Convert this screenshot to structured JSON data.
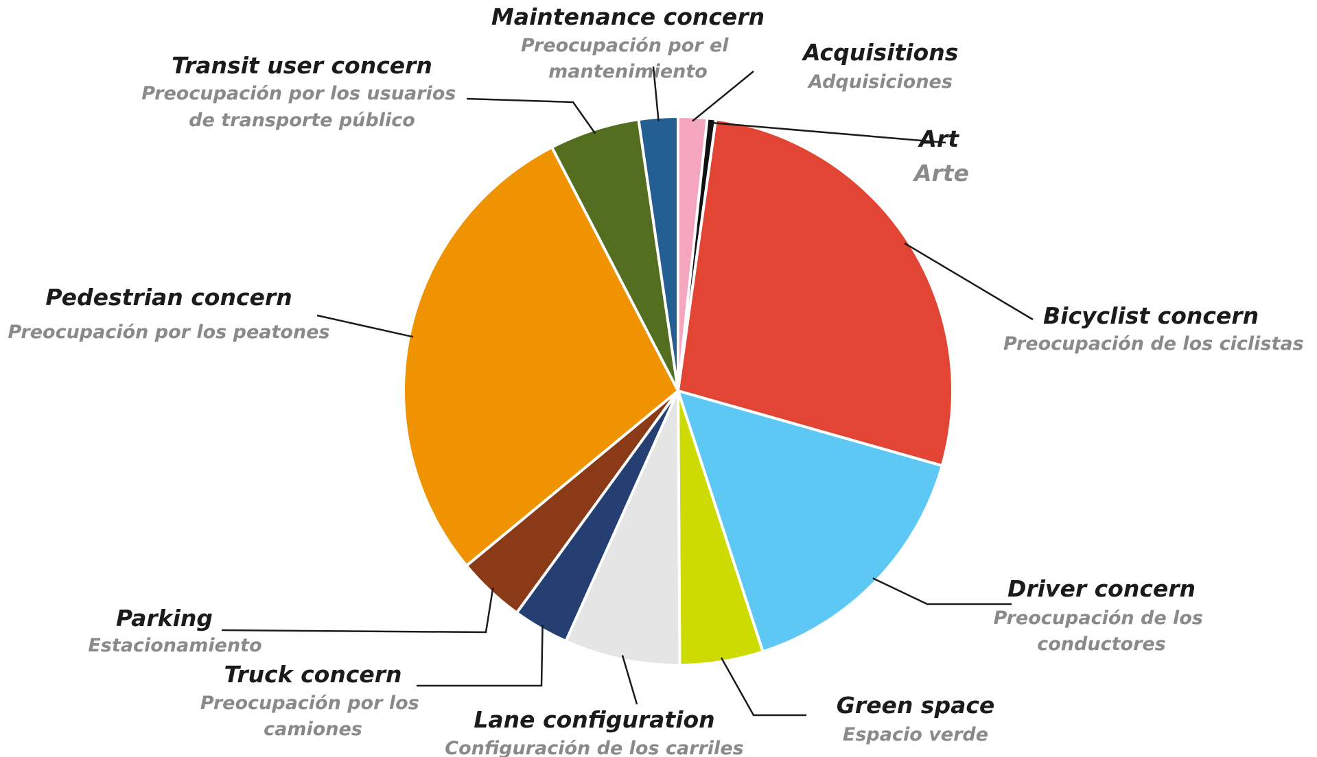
{
  "chart_data": {
    "type": "pie",
    "start_angle": "12 o'clock",
    "direction": "clockwise",
    "slices": [
      {
        "label": "Acquisitions",
        "label_es": "Adquisiciones",
        "value": 1.7,
        "color": "#F4A6BE"
      },
      {
        "label": "Art",
        "label_es": "Arte",
        "value": 0.5,
        "color": "#111111"
      },
      {
        "label": "Bicyclist concern",
        "label_es": "Preocupación de los ciclistas",
        "value": 27.2,
        "color": "#E34535"
      },
      {
        "label": "Driver concern",
        "label_es": "Preocupación de los conductores",
        "value": 15.6,
        "color": "#5EC8F5"
      },
      {
        "label": "Green space",
        "label_es": "Espacio verde",
        "value": 4.9,
        "color": "#CDDB00"
      },
      {
        "label": "Lane configuration",
        "label_es": "Configuración de los carriles",
        "value": 6.8,
        "color": "#E5E5E5"
      },
      {
        "label": "Truck concern",
        "label_es": "Preocupación por los camiones",
        "value": 3.3,
        "color": "#253F73"
      },
      {
        "label": "Parking",
        "label_es": "Estacionamiento",
        "value": 4.0,
        "color": "#8B3A17"
      },
      {
        "label": "Pedestrian concern",
        "label_es": "Preocupación por los peatones",
        "value": 28.4,
        "color": "#EF9400"
      },
      {
        "label": "Transit user concern",
        "label_es": "Preocupación por los usuarios de transporte público",
        "value": 5.3,
        "color": "#536E1F"
      },
      {
        "label": "Maintenance concern",
        "label_es": "Preocupación por el mantenimiento",
        "value": 2.3,
        "color": "#235F92"
      }
    ]
  }
}
